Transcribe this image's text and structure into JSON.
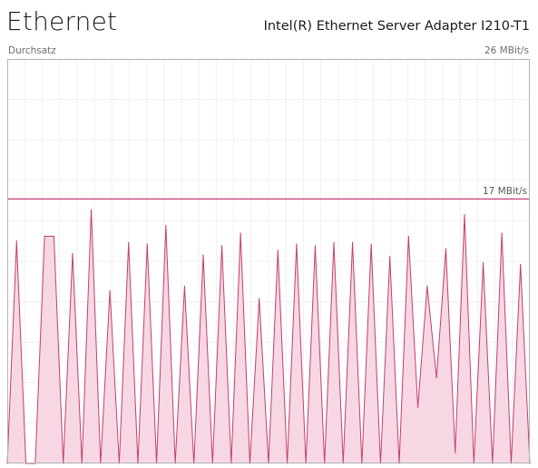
{
  "header": {
    "title": "Ethernet",
    "adapter_name": "Intel(R) Ethernet Server Adapter I210-T1"
  },
  "graph": {
    "label": "Durchsatz",
    "max_label": "26 MBit/s",
    "reference_label": "17 MBit/s",
    "line_color": "#c23e74",
    "fill_color": "#f7d7e4",
    "grid_color": "#f0f0f0",
    "border_color": "#b3b3b3"
  },
  "chart_data": {
    "type": "area",
    "ylim": [
      0,
      26
    ],
    "reference_value": 17,
    "series": [
      {
        "values": [
          0,
          14.3,
          0,
          0,
          14.6,
          14.6,
          0,
          13.5,
          0,
          16.3,
          0,
          11.1,
          0,
          14.2,
          0,
          14.1,
          0,
          15.3,
          0,
          11.4,
          0,
          13.4,
          0,
          14,
          0,
          14.8,
          0,
          10.6,
          0,
          13.7,
          0,
          14.1,
          0,
          14,
          0,
          14.2,
          0,
          14.2,
          0,
          14.1,
          0,
          13.3,
          0,
          14.6,
          3.6,
          11.4,
          5.5,
          13.8,
          0.7,
          16,
          0,
          12.9,
          0,
          14.8,
          0,
          12.8,
          0
        ]
      }
    ]
  }
}
